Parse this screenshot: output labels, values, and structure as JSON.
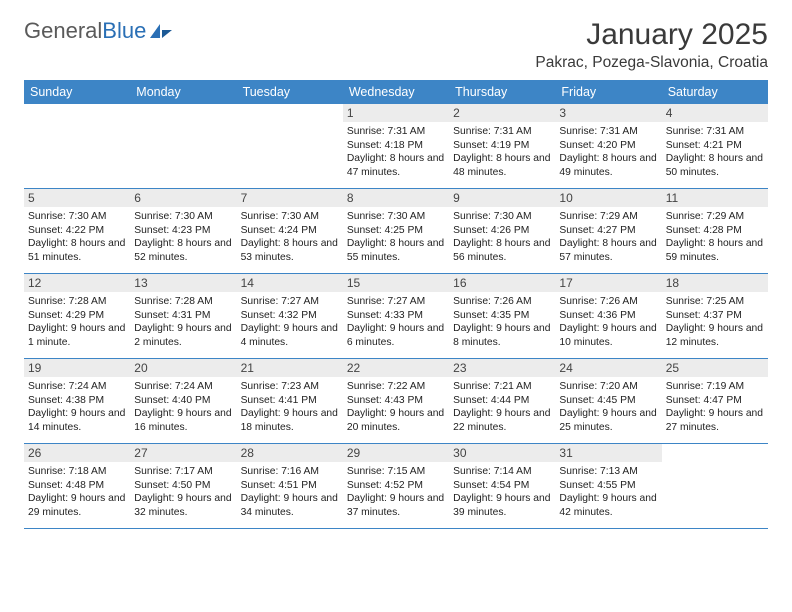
{
  "brand": {
    "name_a": "General",
    "name_b": "Blue"
  },
  "colors": {
    "header_bar": "#3d85c6",
    "header_text": "#ffffff",
    "daynum_bg": "#ececec",
    "text": "#222222",
    "rule": "#3d85c6",
    "logo_gray": "#5a5a5a",
    "logo_blue": "#2a6fb5"
  },
  "typography": {
    "body_pt": 10.3,
    "daynum_pt": 12,
    "weekday_pt": 12.5,
    "title_pt": 30,
    "location_pt": 15.5
  },
  "title": "January 2025",
  "location": "Pakrac, Pozega-Slavonia, Croatia",
  "weekdays": [
    "Sunday",
    "Monday",
    "Tuesday",
    "Wednesday",
    "Thursday",
    "Friday",
    "Saturday"
  ],
  "weeks": [
    [
      {
        "n": "",
        "sr": "",
        "ss": "",
        "dl": ""
      },
      {
        "n": "",
        "sr": "",
        "ss": "",
        "dl": ""
      },
      {
        "n": "",
        "sr": "",
        "ss": "",
        "dl": ""
      },
      {
        "n": "1",
        "sr": "Sunrise: 7:31 AM",
        "ss": "Sunset: 4:18 PM",
        "dl": "Daylight: 8 hours and 47 minutes."
      },
      {
        "n": "2",
        "sr": "Sunrise: 7:31 AM",
        "ss": "Sunset: 4:19 PM",
        "dl": "Daylight: 8 hours and 48 minutes."
      },
      {
        "n": "3",
        "sr": "Sunrise: 7:31 AM",
        "ss": "Sunset: 4:20 PM",
        "dl": "Daylight: 8 hours and 49 minutes."
      },
      {
        "n": "4",
        "sr": "Sunrise: 7:31 AM",
        "ss": "Sunset: 4:21 PM",
        "dl": "Daylight: 8 hours and 50 minutes."
      }
    ],
    [
      {
        "n": "5",
        "sr": "Sunrise: 7:30 AM",
        "ss": "Sunset: 4:22 PM",
        "dl": "Daylight: 8 hours and 51 minutes."
      },
      {
        "n": "6",
        "sr": "Sunrise: 7:30 AM",
        "ss": "Sunset: 4:23 PM",
        "dl": "Daylight: 8 hours and 52 minutes."
      },
      {
        "n": "7",
        "sr": "Sunrise: 7:30 AM",
        "ss": "Sunset: 4:24 PM",
        "dl": "Daylight: 8 hours and 53 minutes."
      },
      {
        "n": "8",
        "sr": "Sunrise: 7:30 AM",
        "ss": "Sunset: 4:25 PM",
        "dl": "Daylight: 8 hours and 55 minutes."
      },
      {
        "n": "9",
        "sr": "Sunrise: 7:30 AM",
        "ss": "Sunset: 4:26 PM",
        "dl": "Daylight: 8 hours and 56 minutes."
      },
      {
        "n": "10",
        "sr": "Sunrise: 7:29 AM",
        "ss": "Sunset: 4:27 PM",
        "dl": "Daylight: 8 hours and 57 minutes."
      },
      {
        "n": "11",
        "sr": "Sunrise: 7:29 AM",
        "ss": "Sunset: 4:28 PM",
        "dl": "Daylight: 8 hours and 59 minutes."
      }
    ],
    [
      {
        "n": "12",
        "sr": "Sunrise: 7:28 AM",
        "ss": "Sunset: 4:29 PM",
        "dl": "Daylight: 9 hours and 1 minute."
      },
      {
        "n": "13",
        "sr": "Sunrise: 7:28 AM",
        "ss": "Sunset: 4:31 PM",
        "dl": "Daylight: 9 hours and 2 minutes."
      },
      {
        "n": "14",
        "sr": "Sunrise: 7:27 AM",
        "ss": "Sunset: 4:32 PM",
        "dl": "Daylight: 9 hours and 4 minutes."
      },
      {
        "n": "15",
        "sr": "Sunrise: 7:27 AM",
        "ss": "Sunset: 4:33 PM",
        "dl": "Daylight: 9 hours and 6 minutes."
      },
      {
        "n": "16",
        "sr": "Sunrise: 7:26 AM",
        "ss": "Sunset: 4:35 PM",
        "dl": "Daylight: 9 hours and 8 minutes."
      },
      {
        "n": "17",
        "sr": "Sunrise: 7:26 AM",
        "ss": "Sunset: 4:36 PM",
        "dl": "Daylight: 9 hours and 10 minutes."
      },
      {
        "n": "18",
        "sr": "Sunrise: 7:25 AM",
        "ss": "Sunset: 4:37 PM",
        "dl": "Daylight: 9 hours and 12 minutes."
      }
    ],
    [
      {
        "n": "19",
        "sr": "Sunrise: 7:24 AM",
        "ss": "Sunset: 4:38 PM",
        "dl": "Daylight: 9 hours and 14 minutes."
      },
      {
        "n": "20",
        "sr": "Sunrise: 7:24 AM",
        "ss": "Sunset: 4:40 PM",
        "dl": "Daylight: 9 hours and 16 minutes."
      },
      {
        "n": "21",
        "sr": "Sunrise: 7:23 AM",
        "ss": "Sunset: 4:41 PM",
        "dl": "Daylight: 9 hours and 18 minutes."
      },
      {
        "n": "22",
        "sr": "Sunrise: 7:22 AM",
        "ss": "Sunset: 4:43 PM",
        "dl": "Daylight: 9 hours and 20 minutes."
      },
      {
        "n": "23",
        "sr": "Sunrise: 7:21 AM",
        "ss": "Sunset: 4:44 PM",
        "dl": "Daylight: 9 hours and 22 minutes."
      },
      {
        "n": "24",
        "sr": "Sunrise: 7:20 AM",
        "ss": "Sunset: 4:45 PM",
        "dl": "Daylight: 9 hours and 25 minutes."
      },
      {
        "n": "25",
        "sr": "Sunrise: 7:19 AM",
        "ss": "Sunset: 4:47 PM",
        "dl": "Daylight: 9 hours and 27 minutes."
      }
    ],
    [
      {
        "n": "26",
        "sr": "Sunrise: 7:18 AM",
        "ss": "Sunset: 4:48 PM",
        "dl": "Daylight: 9 hours and 29 minutes."
      },
      {
        "n": "27",
        "sr": "Sunrise: 7:17 AM",
        "ss": "Sunset: 4:50 PM",
        "dl": "Daylight: 9 hours and 32 minutes."
      },
      {
        "n": "28",
        "sr": "Sunrise: 7:16 AM",
        "ss": "Sunset: 4:51 PM",
        "dl": "Daylight: 9 hours and 34 minutes."
      },
      {
        "n": "29",
        "sr": "Sunrise: 7:15 AM",
        "ss": "Sunset: 4:52 PM",
        "dl": "Daylight: 9 hours and 37 minutes."
      },
      {
        "n": "30",
        "sr": "Sunrise: 7:14 AM",
        "ss": "Sunset: 4:54 PM",
        "dl": "Daylight: 9 hours and 39 minutes."
      },
      {
        "n": "31",
        "sr": "Sunrise: 7:13 AM",
        "ss": "Sunset: 4:55 PM",
        "dl": "Daylight: 9 hours and 42 minutes."
      },
      {
        "n": "",
        "sr": "",
        "ss": "",
        "dl": ""
      }
    ]
  ]
}
